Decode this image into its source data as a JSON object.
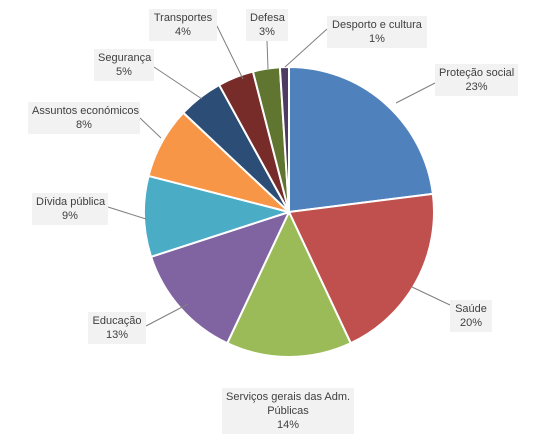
{
  "chart_data": {
    "type": "pie",
    "title": "",
    "start_angle_deg": 0,
    "direction": "clockwise",
    "slices": [
      {
        "name": "Proteção social",
        "value": 23,
        "label": "23%",
        "color": "#4f81bd"
      },
      {
        "name": "Saúde",
        "value": 20,
        "label": "20%",
        "color": "#c0504d"
      },
      {
        "name": "Serviços gerais das Adm. Públicas",
        "name_lines": [
          "Serviços gerais das Adm.",
          "Públicas"
        ],
        "value": 14,
        "label": "14%",
        "color": "#9bbb59"
      },
      {
        "name": "Educação",
        "value": 13,
        "label": "13%",
        "color": "#8064a2"
      },
      {
        "name": "Dívida pública",
        "value": 9,
        "label": "9%",
        "color": "#4bacc6"
      },
      {
        "name": "Assuntos económicos",
        "value": 8,
        "label": "8%",
        "color": "#f79646"
      },
      {
        "name": "Segurança",
        "value": 5,
        "label": "5%",
        "color": "#2c4d75"
      },
      {
        "name": "Transportes",
        "value": 4,
        "label": "4%",
        "color": "#772c2a"
      },
      {
        "name": "Defesa",
        "value": 3,
        "label": "3%",
        "color": "#5f7530"
      },
      {
        "name": "Desporto e cultura",
        "value": 1,
        "label": "1%",
        "color": "#4d3b62"
      }
    ],
    "legend": "none",
    "data_labels": "outside-with-leader-lines"
  }
}
